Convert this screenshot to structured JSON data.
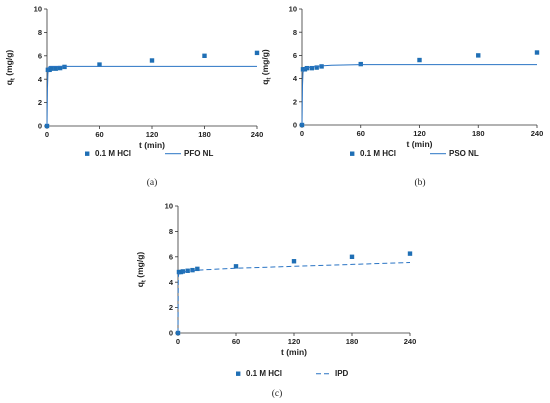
{
  "colors": {
    "marker": "#1f6fb5",
    "fit": "#2a74c4",
    "axis": "#333333"
  },
  "chart_data": [
    {
      "type": "scatter",
      "caption": "(a)",
      "xlabel": "t (min)",
      "ylabel_main": "q",
      "ylabel_sub": "t",
      "ylabel_unit": " (mg/g)",
      "xlim": [
        0,
        240
      ],
      "ylim": [
        0,
        10
      ],
      "xticks": [
        "0",
        "60",
        "120",
        "180",
        "240"
      ],
      "yticks": [
        "0",
        "2",
        "4",
        "6",
        "8",
        "10"
      ],
      "grid": false,
      "legend_position": "bottom",
      "series": [
        {
          "name": "0.1 M HCl",
          "kind": "markers",
          "x": [
            0,
            1,
            3,
            5,
            10,
            15,
            20,
            60,
            120,
            180,
            240
          ],
          "y": [
            0,
            4.8,
            4.8,
            4.9,
            4.9,
            4.95,
            5.05,
            5.25,
            5.6,
            6.0,
            6.25
          ]
        },
        {
          "name": "PFO NL",
          "kind": "line",
          "dash": "solid",
          "x": [
            0,
            0.5,
            1,
            1.5,
            2,
            3,
            5,
            10,
            240
          ],
          "y": [
            0,
            3.2,
            4.4,
            4.9,
            5.05,
            5.1,
            5.1,
            5.1,
            5.1
          ]
        }
      ]
    },
    {
      "type": "scatter",
      "caption": "(b)",
      "xlabel": "t (min)",
      "ylabel_main": "q",
      "ylabel_sub": "t",
      "ylabel_unit": " (mg/g)",
      "xlim": [
        0,
        240
      ],
      "ylim": [
        0,
        10
      ],
      "xticks": [
        "0",
        "60",
        "120",
        "180",
        "240"
      ],
      "yticks": [
        "0",
        "2",
        "4",
        "6",
        "8",
        "10"
      ],
      "grid": false,
      "legend_position": "bottom",
      "series": [
        {
          "name": "0.1 M HCl",
          "kind": "markers",
          "x": [
            0,
            1,
            3,
            5,
            10,
            15,
            20,
            60,
            120,
            180,
            240
          ],
          "y": [
            0,
            4.8,
            4.8,
            4.9,
            4.9,
            4.95,
            5.05,
            5.25,
            5.6,
            6.0,
            6.25
          ]
        },
        {
          "name": "PSO NL",
          "kind": "line",
          "dash": "solid",
          "x": [
            0,
            0.5,
            1,
            2,
            5,
            10,
            20,
            30,
            60,
            120,
            240
          ],
          "y": [
            0,
            3.4,
            4.5,
            4.85,
            4.95,
            5.0,
            5.1,
            5.15,
            5.2,
            5.2,
            5.2
          ]
        }
      ]
    },
    {
      "type": "scatter",
      "caption": "(c)",
      "xlabel": "t (min)",
      "ylabel_main": "q",
      "ylabel_sub": "t",
      "ylabel_unit": " (mg/g)",
      "xlim": [
        0,
        240
      ],
      "ylim": [
        0,
        10
      ],
      "xticks": [
        "0",
        "60",
        "120",
        "180",
        "240"
      ],
      "yticks": [
        "0",
        "2",
        "4",
        "6",
        "8",
        "10"
      ],
      "grid": false,
      "legend_position": "bottom",
      "series": [
        {
          "name": "0.1 M HCl",
          "kind": "markers",
          "x": [
            0,
            1,
            3,
            5,
            10,
            15,
            20,
            60,
            120,
            180,
            240
          ],
          "y": [
            0,
            4.8,
            4.8,
            4.85,
            4.9,
            4.95,
            5.05,
            5.25,
            5.65,
            6.0,
            6.25
          ]
        },
        {
          "name": "IPD",
          "kind": "line",
          "dash": "dashed",
          "x": [
            0,
            0.3,
            1,
            5,
            20,
            60,
            120,
            180,
            240
          ],
          "y": [
            0,
            4.4,
            4.75,
            4.8,
            4.95,
            5.1,
            5.25,
            5.4,
            5.55
          ]
        }
      ]
    }
  ]
}
